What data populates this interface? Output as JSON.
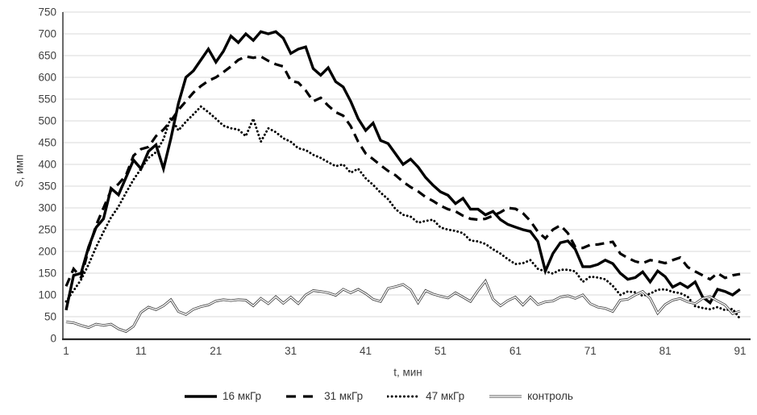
{
  "chart_data": {
    "type": "line",
    "title": "",
    "xlabel": "t, мин",
    "ylabel": "S, имп",
    "x_start": 1,
    "x_step": 1,
    "x_end": 91,
    "x_ticks": [
      1,
      11,
      21,
      31,
      41,
      51,
      61,
      71,
      81,
      91
    ],
    "y_ticks": [
      0,
      50,
      100,
      150,
      200,
      250,
      300,
      350,
      400,
      450,
      500,
      550,
      600,
      650,
      700,
      750
    ],
    "ylim": [
      0,
      750
    ],
    "grid": "horizontal",
    "legend_position": "bottom",
    "colors": {
      "series": "#000000",
      "control": "#3a3a3a",
      "gridline": "#d9d9d9",
      "axis": "#262626",
      "text": "#404040"
    },
    "series": [
      {
        "name": "16 мкГр",
        "style": "solid-thick",
        "values": [
          65,
          145,
          150,
          210,
          255,
          275,
          345,
          330,
          370,
          410,
          390,
          430,
          445,
          390,
          460,
          540,
          600,
          615,
          640,
          665,
          635,
          660,
          695,
          680,
          700,
          685,
          705,
          700,
          705,
          690,
          655,
          665,
          670,
          620,
          605,
          622,
          590,
          578,
          545,
          505,
          478,
          495,
          455,
          448,
          424,
          400,
          412,
          394,
          370,
          352,
          337,
          329,
          310,
          322,
          297,
          297,
          284,
          292,
          273,
          262,
          256,
          250,
          246,
          223,
          155,
          195,
          220,
          224,
          205,
          165,
          165,
          170,
          180,
          172,
          150,
          136,
          140,
          153,
          130,
          155,
          142,
          118,
          127,
          117,
          130,
          95,
          82,
          113,
          108,
          100,
          113
        ]
      },
      {
        "name": "31 мкГр",
        "style": "dashed",
        "values": [
          120,
          160,
          140,
          205,
          260,
          300,
          340,
          355,
          375,
          420,
          435,
          440,
          465,
          480,
          500,
          525,
          545,
          565,
          580,
          592,
          600,
          612,
          625,
          640,
          648,
          645,
          648,
          638,
          630,
          625,
          592,
          588,
          570,
          545,
          553,
          535,
          520,
          512,
          488,
          452,
          425,
          412,
          398,
          385,
          375,
          360,
          348,
          338,
          325,
          316,
          305,
          297,
          292,
          282,
          275,
          273,
          275,
          282,
          290,
          300,
          298,
          288,
          270,
          245,
          230,
          250,
          260,
          242,
          210,
          208,
          215,
          216,
          219,
          222,
          195,
          185,
          177,
          173,
          180,
          177,
          173,
          180,
          186,
          164,
          154,
          145,
          136,
          150,
          139,
          145,
          148
        ]
      },
      {
        "name": "47 мкГр",
        "style": "dotted",
        "values": [
          85,
          110,
          135,
          170,
          210,
          245,
          278,
          303,
          335,
          365,
          390,
          415,
          428,
          458,
          508,
          478,
          498,
          515,
          533,
          520,
          505,
          489,
          483,
          480,
          465,
          505,
          452,
          483,
          474,
          460,
          452,
          437,
          433,
          422,
          415,
          405,
          396,
          400,
          381,
          390,
          368,
          353,
          335,
          320,
          297,
          284,
          280,
          266,
          270,
          273,
          255,
          250,
          247,
          242,
          225,
          223,
          217,
          205,
          195,
          182,
          171,
          173,
          180,
          160,
          154,
          149,
          158,
          158,
          154,
          130,
          142,
          140,
          136,
          121,
          100,
          108,
          106,
          98,
          103,
          112,
          113,
          107,
          104,
          96,
          74,
          70,
          67,
          72,
          65,
          68,
          45
        ]
      },
      {
        "name": "контроль",
        "style": "double-thin",
        "values": [
          38,
          36,
          30,
          25,
          33,
          30,
          33,
          22,
          16,
          28,
          60,
          72,
          66,
          75,
          89,
          62,
          55,
          67,
          73,
          77,
          86,
          89,
          87,
          89,
          88,
          75,
          92,
          80,
          96,
          81,
          95,
          80,
          100,
          110,
          108,
          105,
          99,
          113,
          105,
          113,
          103,
          90,
          85,
          115,
          119,
          124,
          112,
          82,
          110,
          102,
          97,
          93,
          105,
          95,
          85,
          110,
          132,
          90,
          75,
          87,
          95,
          77,
          95,
          78,
          84,
          86,
          95,
          98,
          92,
          100,
          80,
          72,
          69,
          62,
          88,
          90,
          100,
          108,
          92,
          58,
          78,
          88,
          92,
          84,
          80,
          92,
          96,
          86,
          77,
          57,
          63
        ]
      }
    ]
  }
}
